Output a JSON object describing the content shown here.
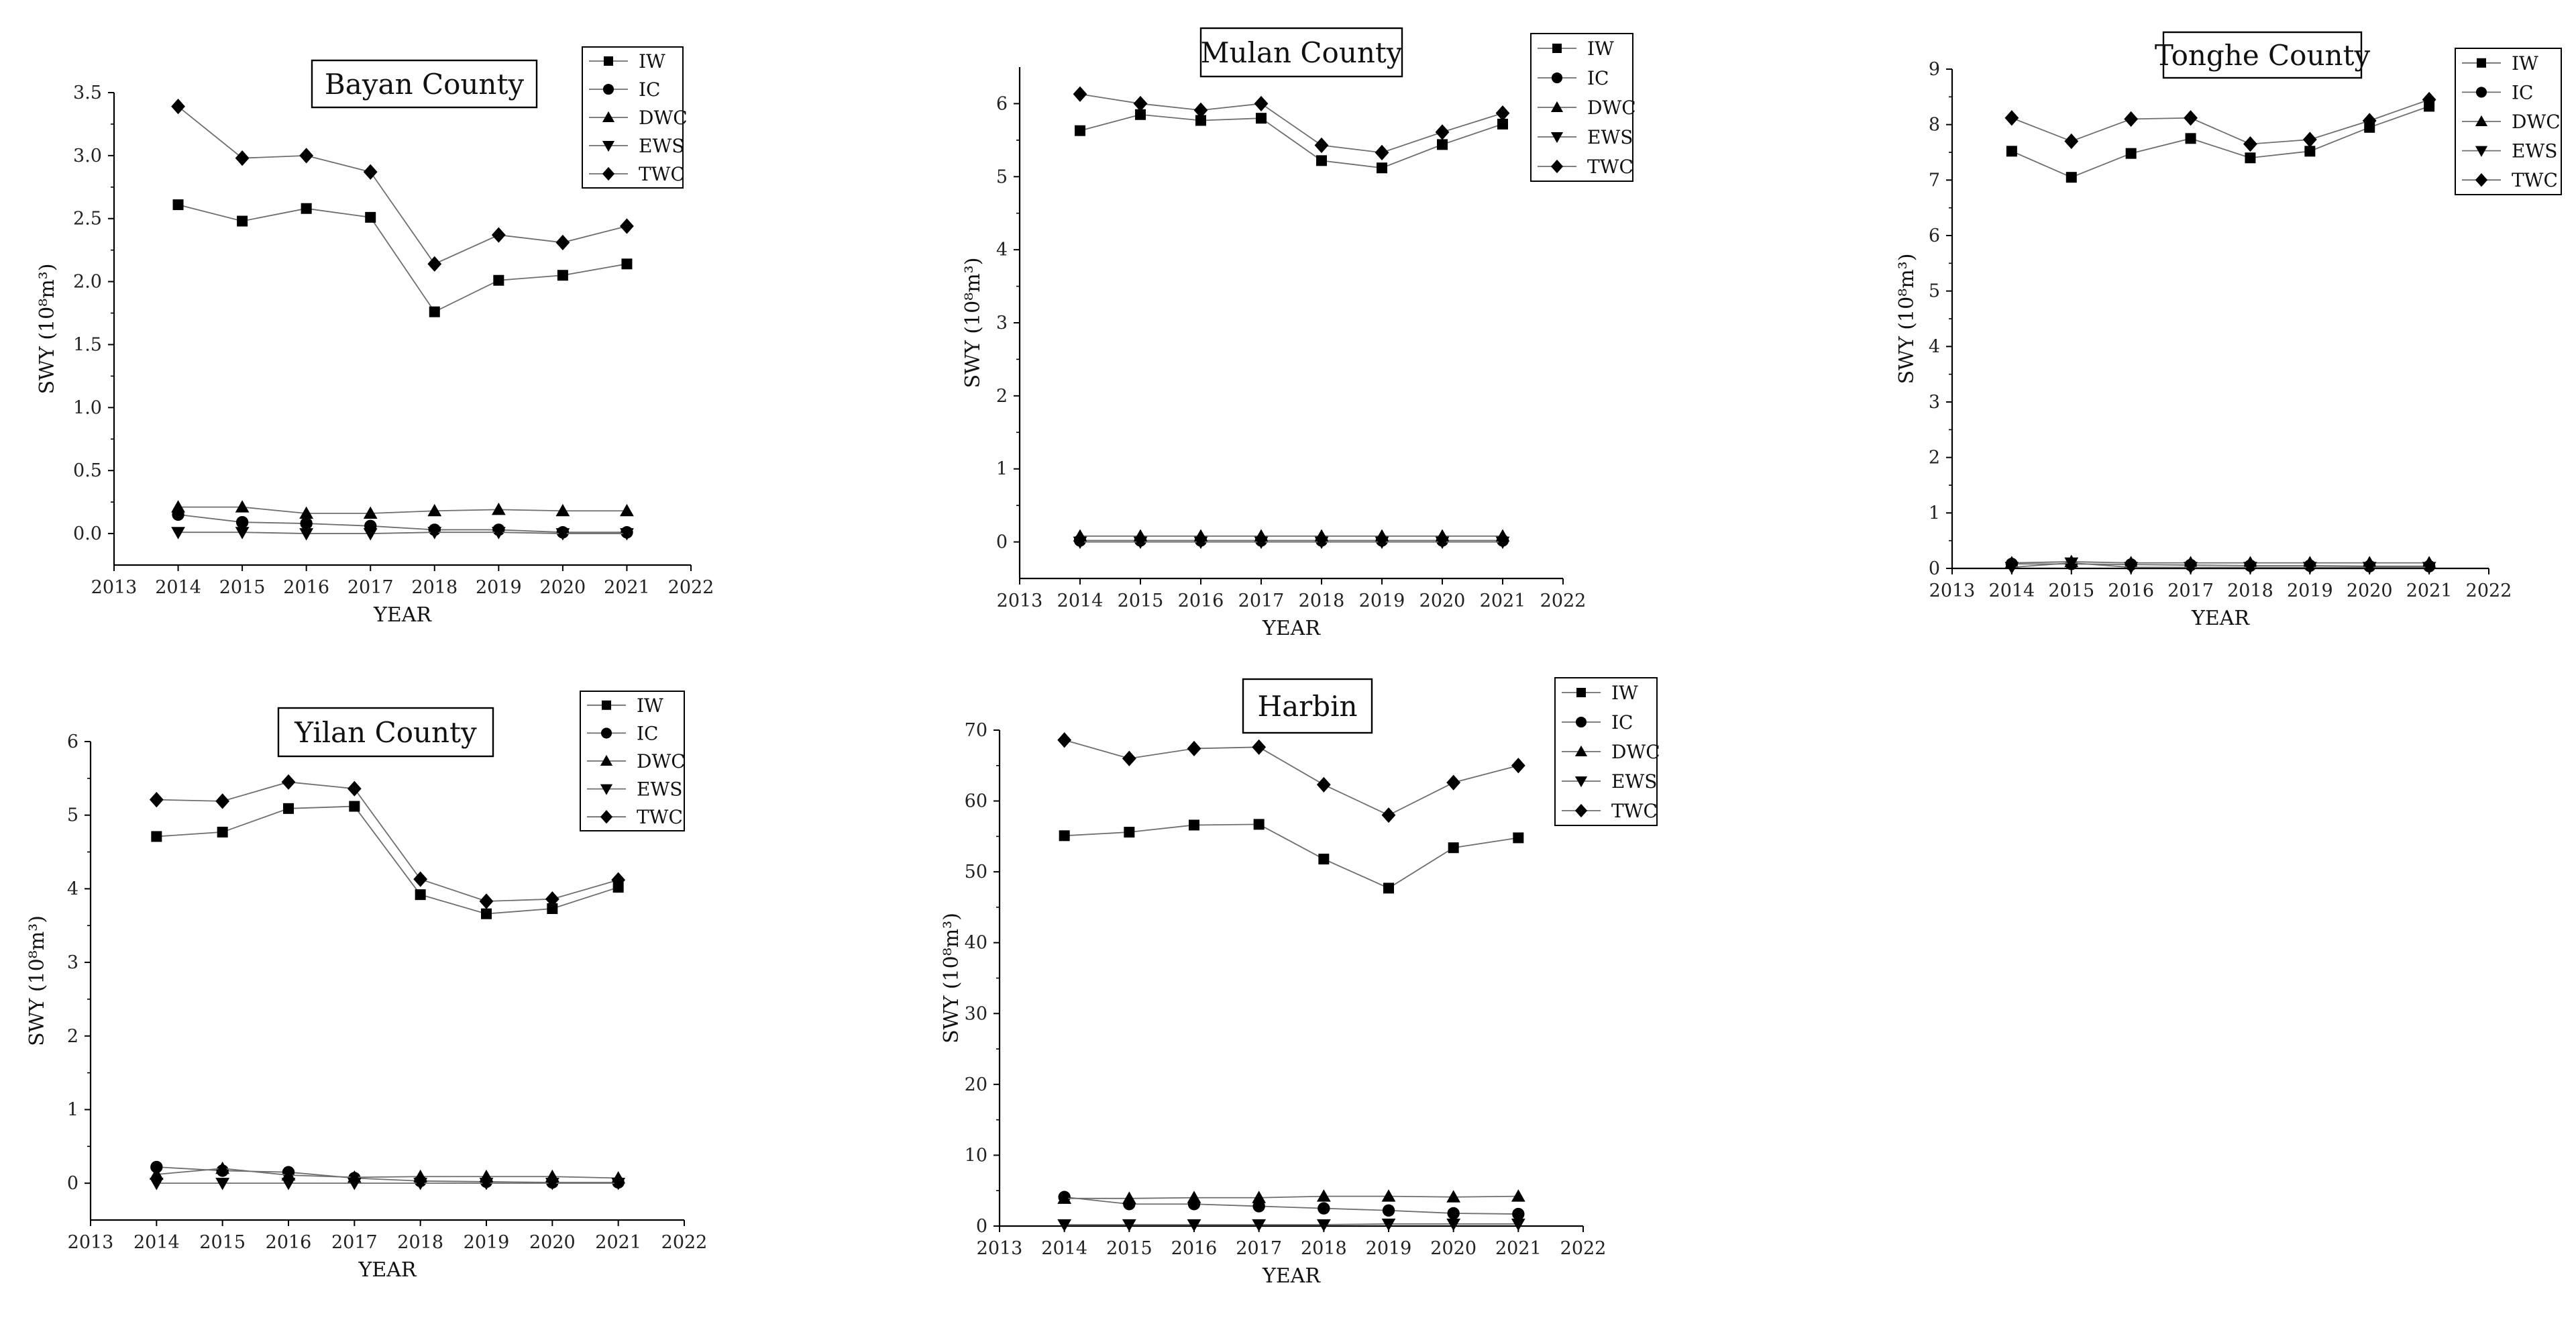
{
  "chart_data": [
    {
      "type": "line",
      "title": "Bayan County",
      "xlabel": "YEAR",
      "ylabel": "SWY (10⁸m³)",
      "xlim": [
        2013,
        2022
      ],
      "ylim": [
        -0.25,
        3.5
      ],
      "yticks": [
        0.0,
        0.5,
        1.0,
        1.5,
        2.0,
        2.5,
        3.0,
        3.5
      ],
      "ytick_labels": [
        "0.0",
        "0.5",
        "1.0",
        "1.5",
        "2.0",
        "2.5",
        "3.0",
        "3.5"
      ],
      "x": [
        2014,
        2015,
        2016,
        2017,
        2018,
        2019,
        2020,
        2021
      ],
      "xtick_labels": [
        "2013",
        "2014",
        "2015",
        "2016",
        "2017",
        "2018",
        "2019",
        "2020",
        "2021",
        "2022"
      ],
      "legend_placement": "top-right",
      "series": [
        {
          "name": "IW",
          "marker": "square",
          "values": [
            2.61,
            2.48,
            2.58,
            2.51,
            1.76,
            2.01,
            2.05,
            2.14
          ]
        },
        {
          "name": "IC",
          "marker": "circle",
          "values": [
            0.15,
            0.09,
            0.08,
            0.06,
            0.03,
            0.03,
            0.01,
            0.01
          ]
        },
        {
          "name": "DWC",
          "marker": "triangle-up",
          "values": [
            0.21,
            0.21,
            0.16,
            0.16,
            0.18,
            0.19,
            0.18,
            0.18
          ]
        },
        {
          "name": "EWS",
          "marker": "triangle-down",
          "values": [
            0.01,
            0.01,
            0.0,
            0.0,
            0.01,
            0.01,
            0.0,
            0.0
          ]
        },
        {
          "name": "TWC",
          "marker": "diamond",
          "values": [
            3.39,
            2.98,
            3.0,
            2.87,
            2.14,
            2.37,
            2.31,
            2.44
          ]
        }
      ]
    },
    {
      "type": "line",
      "title": "Mulan County",
      "xlabel": "YEAR",
      "ylabel": "SWY (10⁸m³)",
      "xlim": [
        2013,
        2022
      ],
      "ylim": [
        -0.5,
        6.5
      ],
      "yticks": [
        0,
        1,
        2,
        3,
        4,
        5,
        6
      ],
      "ytick_labels": [
        "0",
        "1",
        "2",
        "3",
        "4",
        "5",
        "6"
      ],
      "x": [
        2014,
        2015,
        2016,
        2017,
        2018,
        2019,
        2020,
        2021
      ],
      "xtick_labels": [
        "2013",
        "2014",
        "2015",
        "2016",
        "2017",
        "2018",
        "2019",
        "2020",
        "2021",
        "2022"
      ],
      "legend_placement": "top-right",
      "series": [
        {
          "name": "IW",
          "marker": "square",
          "values": [
            5.63,
            5.85,
            5.77,
            5.8,
            5.22,
            5.12,
            5.44,
            5.72
          ]
        },
        {
          "name": "IC",
          "marker": "circle",
          "values": [
            0.02,
            0.02,
            0.02,
            0.02,
            0.02,
            0.02,
            0.02,
            0.02
          ]
        },
        {
          "name": "DWC",
          "marker": "triangle-up",
          "values": [
            0.08,
            0.08,
            0.08,
            0.08,
            0.08,
            0.08,
            0.08,
            0.08
          ]
        },
        {
          "name": "EWS",
          "marker": "triangle-down",
          "values": [
            0.0,
            0.0,
            0.0,
            0.0,
            0.0,
            0.0,
            0.0,
            0.0
          ]
        },
        {
          "name": "TWC",
          "marker": "diamond",
          "values": [
            6.13,
            6.0,
            5.91,
            6.0,
            5.43,
            5.33,
            5.61,
            5.87
          ]
        }
      ]
    },
    {
      "type": "line",
      "title": "Tonghe County",
      "xlabel": "YEAR",
      "ylabel": "SWY (10⁸m³)",
      "xlim": [
        2013,
        2022
      ],
      "ylim": [
        0,
        9
      ],
      "yticks": [
        0,
        1,
        2,
        3,
        4,
        5,
        6,
        7,
        8,
        9
      ],
      "ytick_labels": [
        "0",
        "1",
        "2",
        "3",
        "4",
        "5",
        "6",
        "7",
        "8",
        "9"
      ],
      "x": [
        2014,
        2015,
        2016,
        2017,
        2018,
        2019,
        2020,
        2021
      ],
      "xtick_labels": [
        "2013",
        "2014",
        "2015",
        "2016",
        "2017",
        "2018",
        "2019",
        "2020",
        "2021",
        "2022"
      ],
      "legend_placement": "top-right",
      "series": [
        {
          "name": "IW",
          "marker": "square",
          "values": [
            7.52,
            7.05,
            7.48,
            7.75,
            7.4,
            7.52,
            7.95,
            8.33
          ]
        },
        {
          "name": "IC",
          "marker": "circle",
          "values": [
            0.08,
            0.08,
            0.07,
            0.06,
            0.05,
            0.05,
            0.04,
            0.04
          ]
        },
        {
          "name": "DWC",
          "marker": "triangle-up",
          "values": [
            0.1,
            0.12,
            0.1,
            0.1,
            0.1,
            0.1,
            0.1,
            0.1
          ]
        },
        {
          "name": "EWS",
          "marker": "triangle-down",
          "values": [
            0.02,
            0.1,
            0.02,
            0.02,
            0.02,
            0.02,
            0.02,
            0.02
          ]
        },
        {
          "name": "TWC",
          "marker": "diamond",
          "values": [
            8.12,
            7.7,
            8.1,
            8.12,
            7.65,
            7.73,
            8.07,
            8.45
          ]
        }
      ]
    },
    {
      "type": "line",
      "title": "Yilan County",
      "xlabel": "YEAR",
      "ylabel": "SWY (10⁸m³)",
      "xlim": [
        2013,
        2022
      ],
      "ylim": [
        -0.5,
        6
      ],
      "yticks": [
        0,
        1,
        2,
        3,
        4,
        5,
        6
      ],
      "ytick_labels": [
        "0",
        "1",
        "2",
        "3",
        "4",
        "5",
        "6"
      ],
      "x": [
        2014,
        2015,
        2016,
        2017,
        2018,
        2019,
        2020,
        2021
      ],
      "xtick_labels": [
        "2013",
        "2014",
        "2015",
        "2016",
        "2017",
        "2018",
        "2019",
        "2020",
        "2021",
        "2022"
      ],
      "legend_placement": "top-right",
      "series": [
        {
          "name": "IW",
          "marker": "square",
          "values": [
            4.71,
            4.77,
            5.09,
            5.12,
            3.92,
            3.66,
            3.73,
            4.02
          ]
        },
        {
          "name": "IC",
          "marker": "circle",
          "values": [
            0.22,
            0.17,
            0.15,
            0.07,
            0.03,
            0.02,
            0.01,
            0.01
          ]
        },
        {
          "name": "DWC",
          "marker": "triangle-up",
          "values": [
            0.12,
            0.2,
            0.11,
            0.08,
            0.09,
            0.09,
            0.09,
            0.07
          ]
        },
        {
          "name": "EWS",
          "marker": "triangle-down",
          "values": [
            0.0,
            0.0,
            0.0,
            0.0,
            0.0,
            0.0,
            0.0,
            0.0
          ]
        },
        {
          "name": "TWC",
          "marker": "diamond",
          "values": [
            5.21,
            5.19,
            5.45,
            5.36,
            4.13,
            3.83,
            3.86,
            4.12
          ]
        }
      ]
    },
    {
      "type": "line",
      "title": "Harbin",
      "xlabel": "YEAR",
      "ylabel": "SWY (10⁸m³)",
      "xlim": [
        2013,
        2022
      ],
      "ylim": [
        0,
        70
      ],
      "yticks": [
        0,
        10,
        20,
        30,
        40,
        50,
        60,
        70
      ],
      "ytick_labels": [
        "0",
        "10",
        "20",
        "30",
        "40",
        "50",
        "60",
        "70"
      ],
      "x": [
        2014,
        2015,
        2016,
        2017,
        2018,
        2019,
        2020,
        2021
      ],
      "xtick_labels": [
        "2013",
        "2014",
        "2015",
        "2016",
        "2017",
        "2018",
        "2019",
        "2020",
        "2021",
        "2022"
      ],
      "legend_placement": "top-right",
      "series": [
        {
          "name": "IW",
          "marker": "square",
          "values": [
            55.1,
            55.6,
            56.6,
            56.7,
            51.8,
            47.7,
            53.4,
            54.8
          ]
        },
        {
          "name": "IC",
          "marker": "circle",
          "values": [
            4.1,
            3.1,
            3.1,
            2.8,
            2.5,
            2.2,
            1.8,
            1.7
          ]
        },
        {
          "name": "DWC",
          "marker": "triangle-up",
          "values": [
            3.9,
            3.9,
            4.0,
            4.0,
            4.2,
            4.2,
            4.1,
            4.2
          ]
        },
        {
          "name": "EWS",
          "marker": "triangle-down",
          "values": [
            0.2,
            0.2,
            0.2,
            0.2,
            0.2,
            0.3,
            0.3,
            0.3
          ]
        },
        {
          "name": "TWC",
          "marker": "diamond",
          "values": [
            68.6,
            66.0,
            67.4,
            67.6,
            62.3,
            58.0,
            62.6,
            65.0
          ]
        }
      ]
    }
  ]
}
